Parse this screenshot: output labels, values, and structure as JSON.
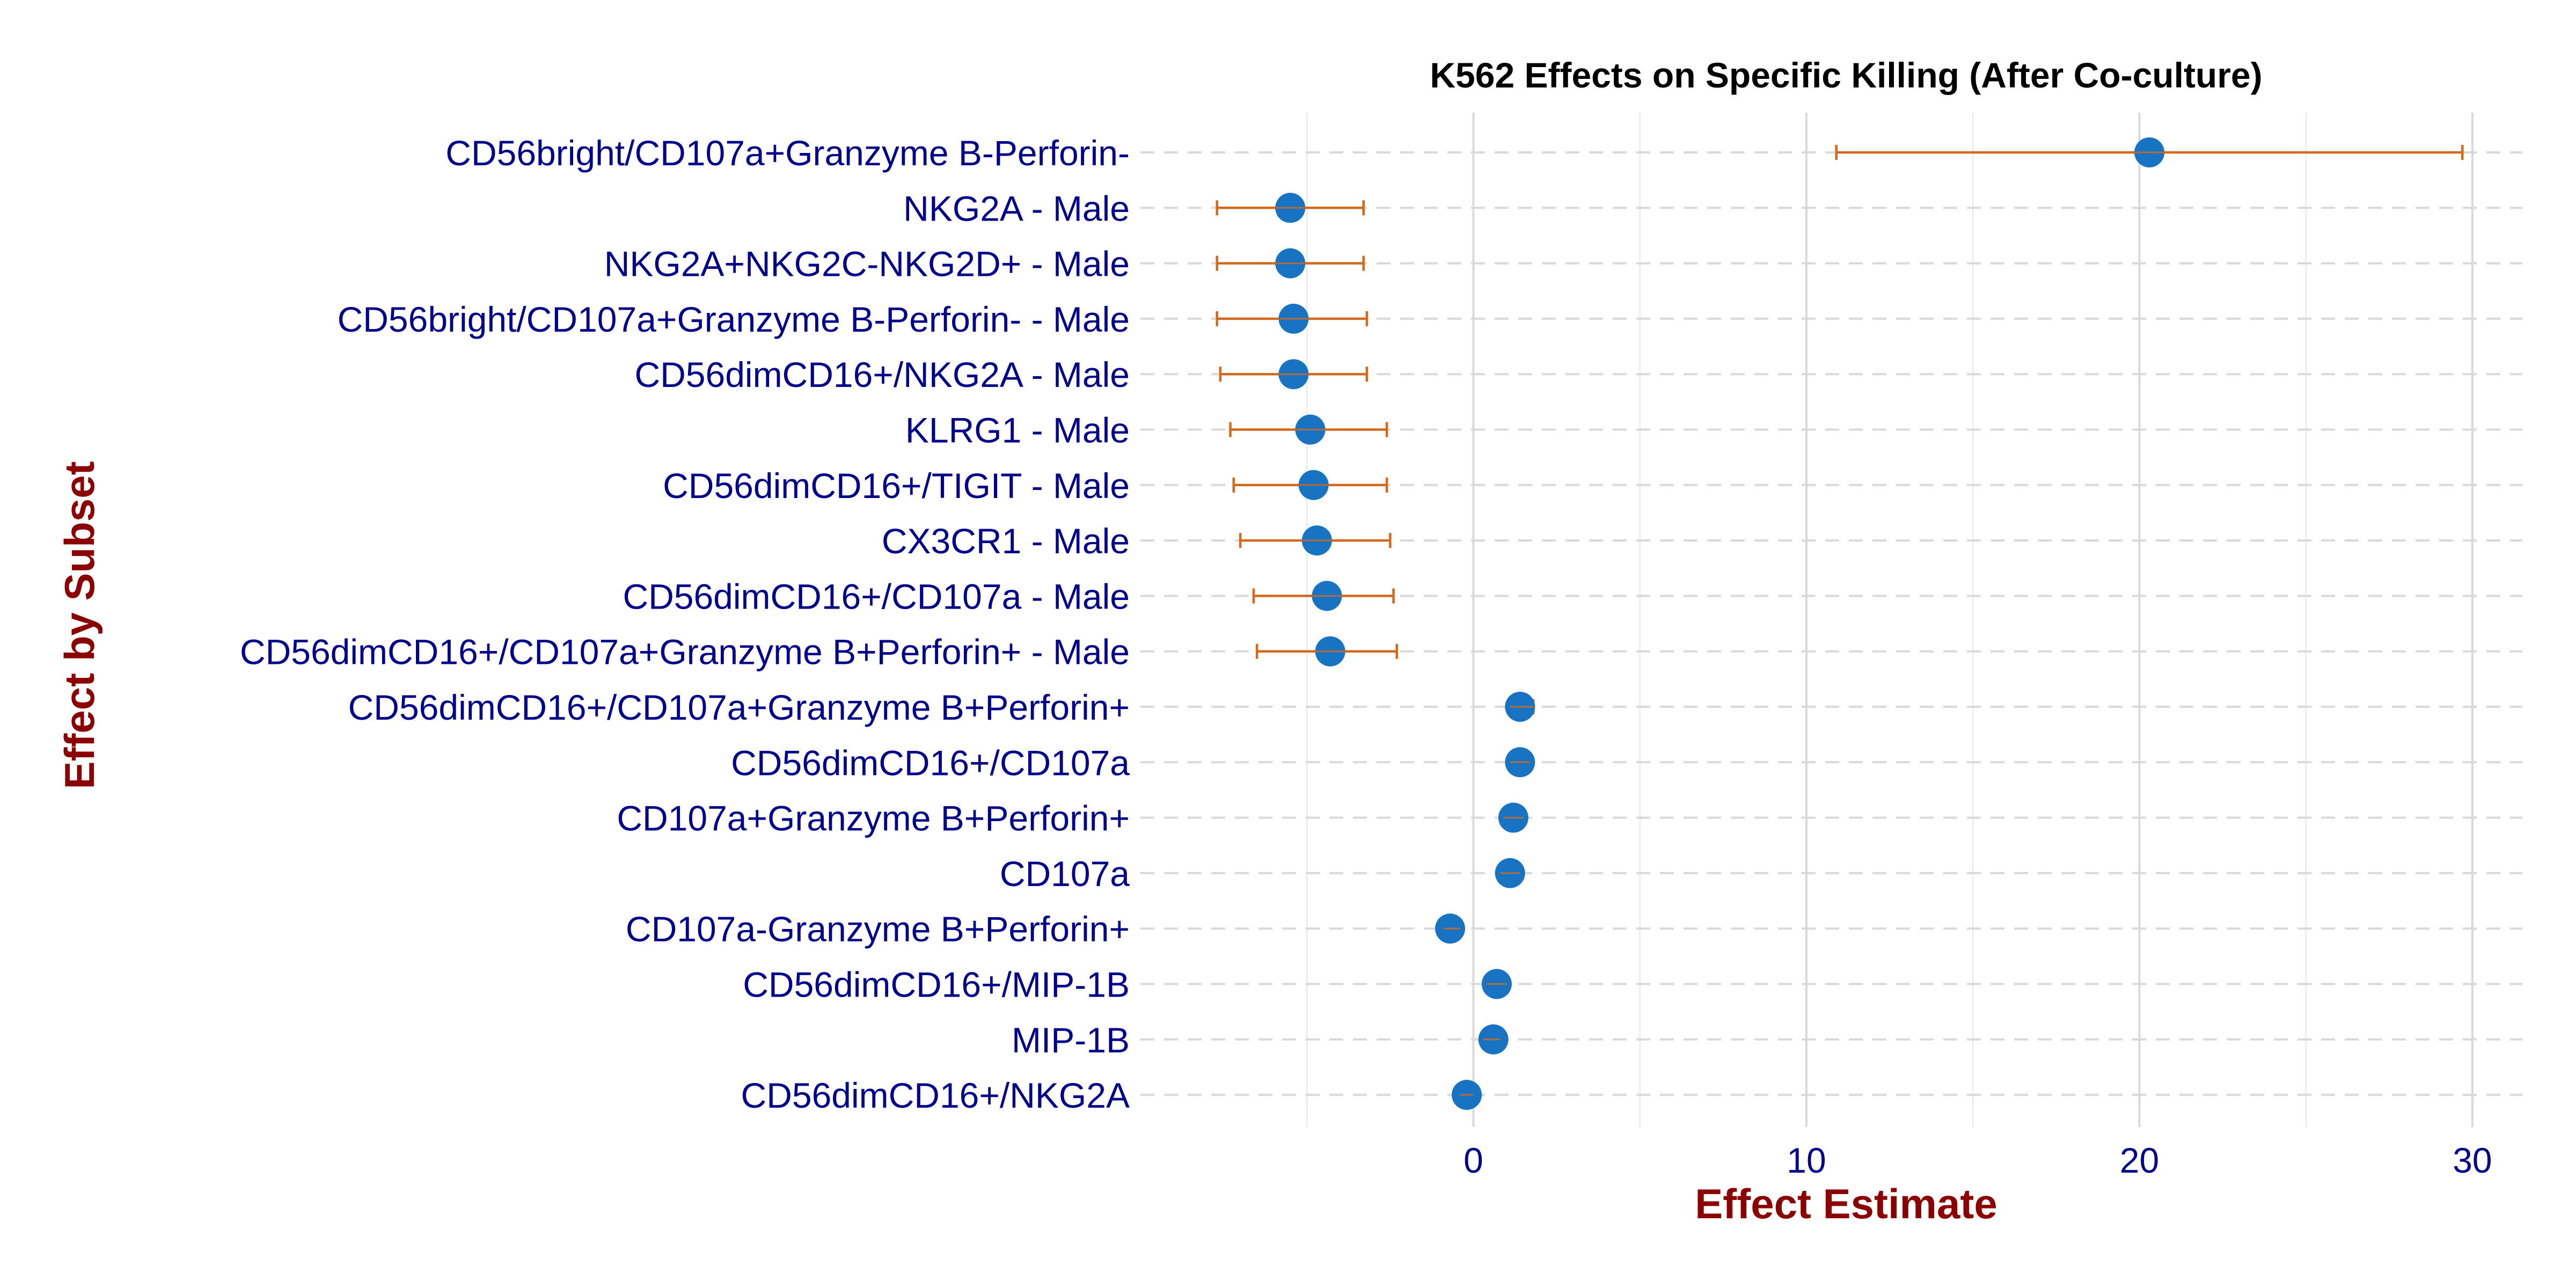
{
  "chart_data": {
    "type": "forest",
    "title": "K562 Effects on Specific Killing (After Co-culture)",
    "xlabel": "Effect Estimate",
    "ylabel": "Effect by Subset",
    "xlim": [
      -10,
      31.5
    ],
    "xticks": [
      0,
      10,
      20,
      30
    ],
    "x_minor_gridlines": [
      -5,
      5,
      15,
      25
    ],
    "grid": "major solid vertical, dashed horizontal per category",
    "legend": "none",
    "categories": [
      "CD56bright/CD107a+Granzyme B-Perforin-",
      "NKG2A - Male",
      "NKG2A+NKG2C-NKG2D+ - Male",
      "CD56bright/CD107a+Granzyme B-Perforin- - Male",
      "CD56dimCD16+/NKG2A - Male",
      "KLRG1 - Male",
      "CD56dimCD16+/TIGIT - Male",
      "CX3CR1 - Male",
      "CD56dimCD16+/CD107a - Male",
      "CD56dimCD16+/CD107a+Granzyme B+Perforin+ - Male",
      "CD56dimCD16+/CD107a+Granzyme B+Perforin+",
      "CD56dimCD16+/CD107a",
      "CD107a+Granzyme B+Perforin+",
      "CD107a",
      "CD107a-Granzyme B+Perforin+",
      "CD56dimCD16+/MIP-1B",
      "MIP-1B",
      "CD56dimCD16+/NKG2A"
    ],
    "estimates": [
      20.3,
      -5.5,
      -5.5,
      -5.4,
      -5.4,
      -4.9,
      -4.8,
      -4.7,
      -4.4,
      -4.3,
      1.4,
      1.4,
      1.2,
      1.1,
      -0.7,
      0.7,
      0.6,
      -0.2
    ],
    "ci_lower": [
      10.9,
      -7.7,
      -7.7,
      -7.7,
      -7.6,
      -7.3,
      -7.2,
      -7.0,
      -6.6,
      -6.5,
      1.1,
      1.1,
      0.9,
      0.8,
      -0.9,
      0.4,
      0.3,
      -0.4
    ],
    "ci_upper": [
      29.7,
      -3.3,
      -3.3,
      -3.2,
      -3.2,
      -2.6,
      -2.6,
      -2.5,
      -2.4,
      -2.3,
      1.8,
      1.7,
      1.5,
      1.4,
      -0.4,
      1.0,
      0.8,
      0.0
    ],
    "colors": {
      "point": "#1874c2",
      "error_bar": "#d2691e",
      "category_label": "#00008b",
      "tick_label": "#00008b",
      "axis_title": "#8b0000",
      "title": "#000000",
      "grid": "#d9d9d9"
    }
  }
}
